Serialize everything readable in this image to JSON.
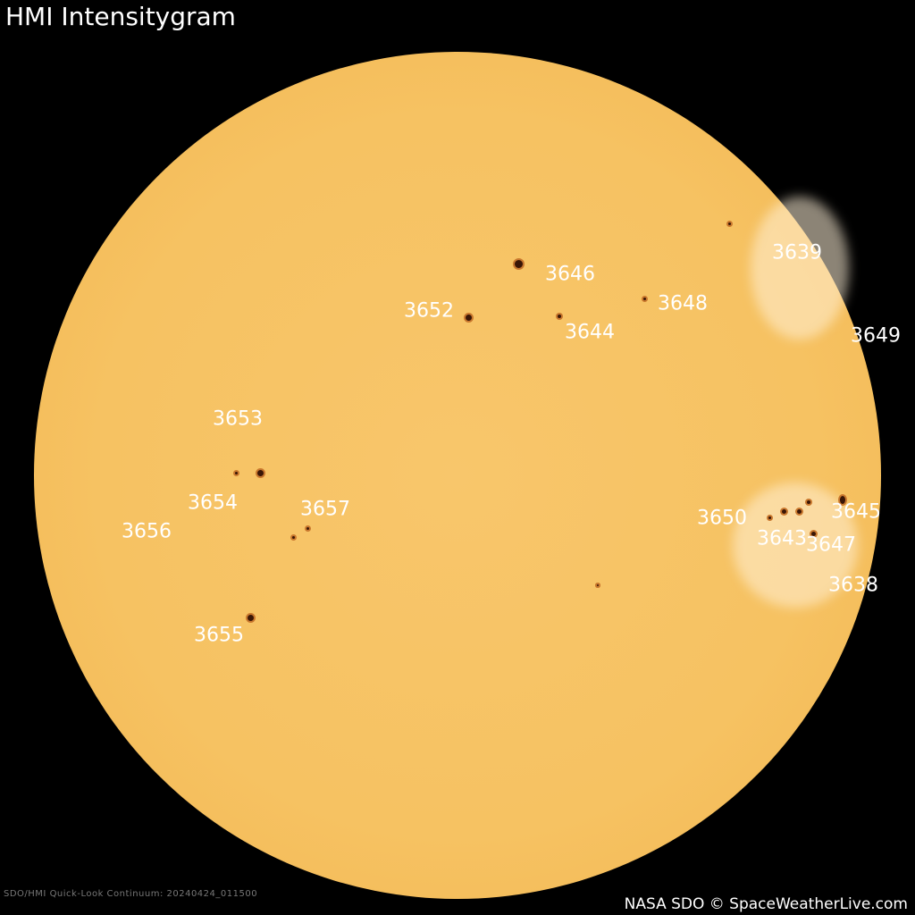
{
  "title": "HMI Intensitygram",
  "caption_left": "SDO/HMI Quick-Look Continuum: 20240424_011500",
  "caption_right": "NASA SDO © SpaceWeatherLive.com",
  "colors": {
    "background": "#000000",
    "photosphere": "#f6c262",
    "sunspot": "#3a1606",
    "label": "#ffffff"
  },
  "regions": [
    "3639",
    "3646",
    "3652",
    "3648",
    "3644",
    "3649",
    "3653",
    "3654",
    "3657",
    "3656",
    "3650",
    "3645",
    "3643",
    "3647",
    "3638",
    "3655"
  ]
}
